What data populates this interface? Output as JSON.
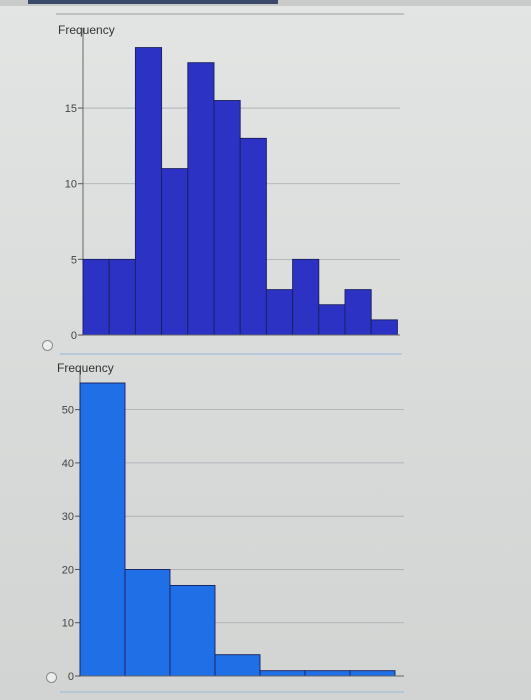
{
  "chart_data": [
    {
      "type": "bar",
      "ylabel": "Frequency",
      "yticks": [
        0,
        5,
        10,
        15
      ],
      "ylim": [
        0,
        19.5
      ],
      "values": [
        5,
        5,
        19,
        11,
        18,
        15.5,
        13,
        3,
        5,
        2,
        3,
        1
      ],
      "grid": true,
      "color": "#2b32c4"
    },
    {
      "type": "bar",
      "ylabel": "Frequency",
      "yticks": [
        0,
        10,
        20,
        30,
        40,
        50
      ],
      "ylim": [
        0,
        55
      ],
      "values": [
        55,
        20,
        17,
        4,
        1,
        1,
        1
      ],
      "grid": true,
      "color": "#1f6fe6"
    }
  ],
  "options": [
    {
      "selected": false
    },
    {
      "selected": false
    }
  ]
}
